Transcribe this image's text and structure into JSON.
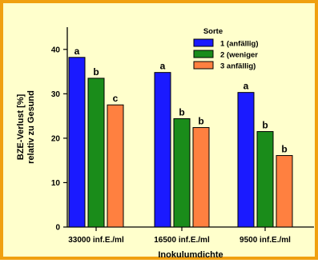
{
  "chart_data": {
    "type": "bar",
    "categories": [
      "33000 inf.E./ml",
      "16500 inf.E./ml",
      "9500 inf.E./ml"
    ],
    "series": [
      {
        "name": "1 (anfällig)",
        "color": "#1a1aff",
        "values": [
          38.2,
          34.8,
          30.3
        ],
        "labels": [
          "a",
          "a",
          "a"
        ]
      },
      {
        "name": "2 (weniger",
        "color": "#1a8c1a",
        "values": [
          33.5,
          24.4,
          21.5
        ],
        "labels": [
          "b",
          "b",
          "b"
        ]
      },
      {
        "name": "3  anfällig)",
        "color": "#ff8040",
        "values": [
          27.5,
          22.4,
          16.1
        ],
        "labels": [
          "c",
          "b",
          "b"
        ]
      }
    ],
    "legend_title": "Sorte",
    "xlabel": "Inokulumdichte",
    "ylabel_line1": "BZE-Verlust [%]",
    "ylabel_line2": "relativ zu Gesund",
    "ylim": [
      0,
      45
    ],
    "yticks": [
      0,
      10,
      20,
      30,
      40
    ],
    "legend_position": "top-right",
    "grid": false
  }
}
